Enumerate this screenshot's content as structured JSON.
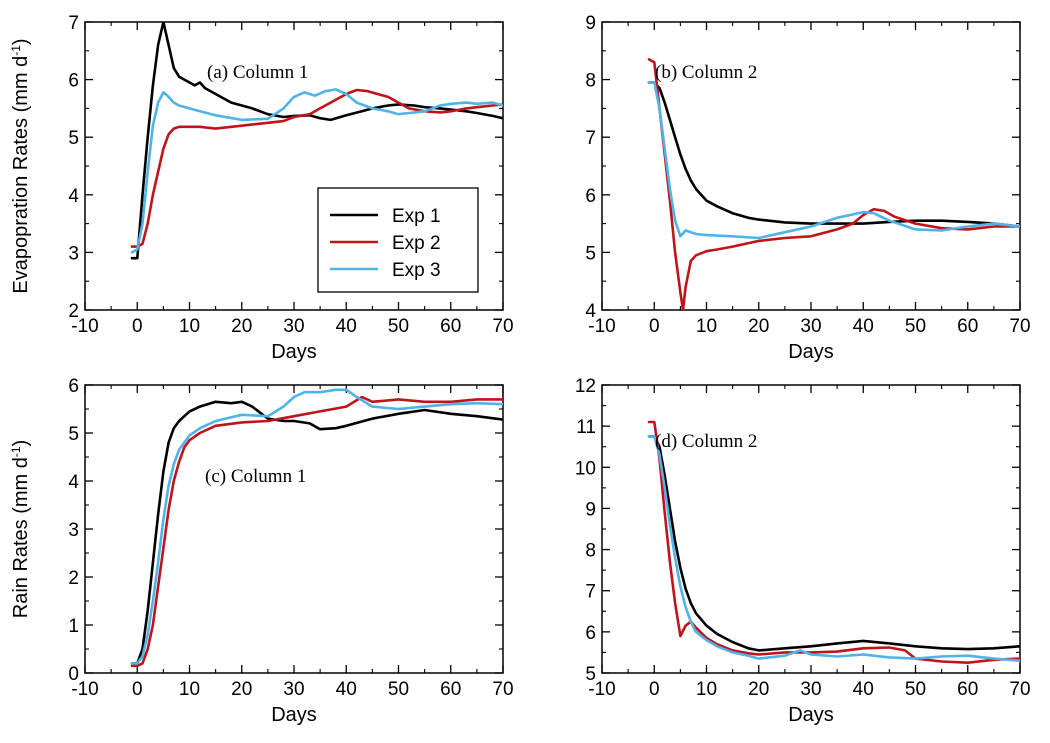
{
  "colors": {
    "exp1": "#000000",
    "exp2": "#c0141c",
    "exp3": "#4fb3e8"
  },
  "legend": {
    "entries": [
      "Exp 1",
      "Exp 2",
      "Exp 3"
    ]
  },
  "chart_data": [
    {
      "type": "line",
      "panel_label": "(a) Column 1",
      "xlabel": "Days",
      "ylabel": "Evapopration Rates (mm d",
      "ylabel_sup": "-1",
      "ylabel_close": ")",
      "xlim": [
        -10,
        70
      ],
      "ylim": [
        2,
        7
      ],
      "xticks": [
        -10,
        0,
        10,
        20,
        30,
        40,
        50,
        60,
        70
      ],
      "yticks": [
        2,
        3,
        4,
        5,
        6,
        7
      ],
      "legend_position": "lower-right",
      "series": [
        {
          "name": "Exp 1",
          "x": [
            -1,
            0,
            1,
            2,
            3,
            4,
            5,
            6,
            7,
            8,
            9,
            10,
            11,
            12,
            13,
            15,
            18,
            20,
            22,
            25,
            28,
            30,
            33,
            35,
            37,
            40,
            43,
            45,
            48,
            50,
            53,
            55,
            58,
            60,
            63,
            65,
            68,
            70
          ],
          "y": [
            2.9,
            2.9,
            4.0,
            5.0,
            5.9,
            6.6,
            7.0,
            6.6,
            6.2,
            6.05,
            6.0,
            5.95,
            5.9,
            5.95,
            5.85,
            5.75,
            5.6,
            5.55,
            5.5,
            5.4,
            5.35,
            5.37,
            5.38,
            5.33,
            5.3,
            5.38,
            5.45,
            5.5,
            5.55,
            5.57,
            5.55,
            5.52,
            5.5,
            5.48,
            5.45,
            5.42,
            5.37,
            5.33
          ]
        },
        {
          "name": "Exp 2",
          "x": [
            -1,
            0,
            1,
            2,
            3,
            4,
            5,
            6,
            7,
            8,
            9,
            10,
            12,
            15,
            20,
            25,
            28,
            30,
            33,
            35,
            37,
            40,
            42,
            44,
            46,
            48,
            50,
            52,
            55,
            58,
            60,
            63,
            65,
            68,
            70
          ],
          "y": [
            3.1,
            3.1,
            3.15,
            3.5,
            4.0,
            4.4,
            4.8,
            5.05,
            5.15,
            5.18,
            5.18,
            5.18,
            5.18,
            5.15,
            5.2,
            5.25,
            5.28,
            5.35,
            5.4,
            5.5,
            5.6,
            5.75,
            5.82,
            5.8,
            5.75,
            5.7,
            5.6,
            5.5,
            5.45,
            5.43,
            5.45,
            5.5,
            5.52,
            5.55,
            5.57
          ]
        },
        {
          "name": "Exp 3",
          "x": [
            -1,
            0,
            1,
            2,
            3,
            4,
            5,
            6,
            7,
            8,
            10,
            12,
            15,
            20,
            25,
            28,
            30,
            32,
            34,
            36,
            38,
            40,
            42,
            45,
            48,
            50,
            52,
            55,
            58,
            60,
            63,
            65,
            68,
            70
          ],
          "y": [
            3.0,
            3.05,
            3.5,
            4.4,
            5.2,
            5.6,
            5.78,
            5.7,
            5.6,
            5.55,
            5.5,
            5.45,
            5.38,
            5.3,
            5.32,
            5.5,
            5.7,
            5.78,
            5.72,
            5.8,
            5.83,
            5.75,
            5.6,
            5.5,
            5.45,
            5.4,
            5.42,
            5.45,
            5.55,
            5.58,
            5.6,
            5.58,
            5.6,
            5.55
          ]
        }
      ]
    },
    {
      "type": "line",
      "panel_label": "(b) Column 2",
      "xlabel": "Days",
      "ylabel": "",
      "ylabel_sup": "",
      "ylabel_close": "",
      "xlim": [
        -10,
        70
      ],
      "ylim": [
        4,
        9
      ],
      "xticks": [
        -10,
        0,
        10,
        20,
        30,
        40,
        50,
        60,
        70
      ],
      "yticks": [
        4,
        5,
        6,
        7,
        8,
        9
      ],
      "series": [
        {
          "name": "Exp 1",
          "x": [
            -1,
            0,
            1,
            2,
            3,
            4,
            5,
            6,
            7,
            8,
            10,
            12,
            15,
            18,
            20,
            25,
            30,
            35,
            40,
            45,
            50,
            55,
            60,
            65,
            70
          ],
          "y": [
            7.95,
            7.95,
            7.85,
            7.6,
            7.3,
            7.0,
            6.7,
            6.45,
            6.25,
            6.1,
            5.9,
            5.8,
            5.68,
            5.6,
            5.57,
            5.52,
            5.5,
            5.5,
            5.5,
            5.53,
            5.55,
            5.55,
            5.53,
            5.5,
            5.45
          ]
        },
        {
          "name": "Exp 2",
          "x": [
            -1,
            0,
            1,
            2,
            3,
            4,
            5,
            5.5,
            6,
            7,
            8,
            10,
            12,
            15,
            20,
            25,
            30,
            35,
            38,
            40,
            42,
            44,
            46,
            50,
            55,
            60,
            65,
            70
          ],
          "y": [
            8.35,
            8.3,
            7.5,
            6.7,
            5.9,
            5.0,
            4.3,
            4.0,
            4.4,
            4.85,
            4.95,
            5.02,
            5.05,
            5.1,
            5.2,
            5.25,
            5.28,
            5.4,
            5.5,
            5.65,
            5.75,
            5.72,
            5.62,
            5.5,
            5.42,
            5.4,
            5.45,
            5.45
          ]
        },
        {
          "name": "Exp 3",
          "x": [
            -1,
            0,
            1,
            2,
            3,
            4,
            5,
            6,
            7,
            8,
            10,
            15,
            20,
            25,
            30,
            35,
            40,
            42,
            45,
            50,
            55,
            60,
            65,
            70
          ],
          "y": [
            7.95,
            7.95,
            7.5,
            6.8,
            6.1,
            5.55,
            5.28,
            5.38,
            5.35,
            5.32,
            5.3,
            5.28,
            5.25,
            5.35,
            5.45,
            5.6,
            5.7,
            5.68,
            5.55,
            5.4,
            5.38,
            5.45,
            5.5,
            5.45
          ]
        }
      ]
    },
    {
      "type": "line",
      "panel_label": "(c)  Column 1",
      "xlabel": "Days",
      "ylabel": "Rain Rates (mm d",
      "ylabel_sup": "-1",
      "ylabel_close": ")",
      "xlim": [
        -10,
        70
      ],
      "ylim": [
        0,
        6
      ],
      "xticks": [
        -10,
        0,
        10,
        20,
        30,
        40,
        50,
        60,
        70
      ],
      "yticks": [
        0,
        1,
        2,
        3,
        4,
        5,
        6
      ],
      "series": [
        {
          "name": "Exp 1",
          "x": [
            -1,
            0,
            1,
            2,
            3,
            4,
            5,
            6,
            7,
            8,
            10,
            12,
            15,
            18,
            20,
            22,
            25,
            28,
            30,
            33,
            35,
            38,
            40,
            45,
            50,
            55,
            60,
            65,
            70
          ],
          "y": [
            0.2,
            0.2,
            0.5,
            1.3,
            2.3,
            3.3,
            4.2,
            4.8,
            5.1,
            5.25,
            5.45,
            5.55,
            5.65,
            5.62,
            5.65,
            5.55,
            5.3,
            5.25,
            5.25,
            5.2,
            5.08,
            5.1,
            5.15,
            5.3,
            5.4,
            5.48,
            5.4,
            5.35,
            5.28
          ]
        },
        {
          "name": "Exp 2",
          "x": [
            -1,
            0,
            1,
            2,
            3,
            4,
            5,
            6,
            7,
            8,
            9,
            10,
            12,
            15,
            20,
            25,
            30,
            35,
            40,
            43,
            45,
            50,
            55,
            60,
            65,
            70
          ],
          "y": [
            0.15,
            0.15,
            0.2,
            0.5,
            1.0,
            1.8,
            2.6,
            3.4,
            4.0,
            4.4,
            4.7,
            4.85,
            5.0,
            5.15,
            5.22,
            5.25,
            5.35,
            5.45,
            5.55,
            5.75,
            5.65,
            5.7,
            5.65,
            5.65,
            5.7,
            5.7
          ]
        },
        {
          "name": "Exp 3",
          "x": [
            -1,
            0,
            1,
            2,
            3,
            4,
            5,
            6,
            7,
            8,
            10,
            12,
            15,
            20,
            25,
            28,
            30,
            32,
            35,
            38,
            40,
            42,
            45,
            50,
            55,
            60,
            65,
            70
          ],
          "y": [
            0.2,
            0.2,
            0.35,
            0.8,
            1.5,
            2.3,
            3.2,
            3.9,
            4.35,
            4.65,
            4.95,
            5.1,
            5.25,
            5.38,
            5.35,
            5.55,
            5.75,
            5.85,
            5.85,
            5.9,
            5.9,
            5.75,
            5.55,
            5.5,
            5.55,
            5.6,
            5.62,
            5.6
          ]
        }
      ]
    },
    {
      "type": "line",
      "panel_label": "(d) Column 2",
      "xlabel": "Days",
      "ylabel": "",
      "ylabel_sup": "",
      "ylabel_close": "",
      "xlim": [
        -10,
        70
      ],
      "ylim": [
        5,
        12
      ],
      "xticks": [
        -10,
        0,
        10,
        20,
        30,
        40,
        50,
        60,
        70
      ],
      "yticks": [
        5,
        6,
        7,
        8,
        9,
        10,
        11,
        12
      ],
      "series": [
        {
          "name": "Exp 1",
          "x": [
            -1,
            0,
            1,
            2,
            3,
            4,
            5,
            6,
            7,
            8,
            10,
            12,
            15,
            18,
            20,
            25,
            30,
            35,
            40,
            45,
            50,
            55,
            60,
            65,
            70
          ],
          "y": [
            10.75,
            10.75,
            10.5,
            9.8,
            9.0,
            8.2,
            7.55,
            7.05,
            6.7,
            6.45,
            6.15,
            5.95,
            5.75,
            5.6,
            5.55,
            5.6,
            5.65,
            5.72,
            5.78,
            5.72,
            5.65,
            5.6,
            5.58,
            5.6,
            5.65
          ]
        },
        {
          "name": "Exp 2",
          "x": [
            -1,
            0,
            1,
            2,
            3,
            4,
            5,
            6,
            7,
            8,
            10,
            12,
            15,
            18,
            20,
            25,
            30,
            35,
            40,
            45,
            48,
            50,
            55,
            60,
            65,
            70
          ],
          "y": [
            11.1,
            11.1,
            10.2,
            8.9,
            7.7,
            6.7,
            5.9,
            6.15,
            6.25,
            6.1,
            5.85,
            5.7,
            5.55,
            5.48,
            5.45,
            5.5,
            5.5,
            5.52,
            5.6,
            5.62,
            5.55,
            5.35,
            5.28,
            5.25,
            5.32,
            5.35
          ]
        },
        {
          "name": "Exp 3",
          "x": [
            -1,
            0,
            1,
            2,
            3,
            4,
            5,
            6,
            7,
            8,
            10,
            12,
            15,
            18,
            20,
            25,
            28,
            30,
            35,
            40,
            45,
            50,
            55,
            60,
            65,
            70
          ],
          "y": [
            10.75,
            10.75,
            10.3,
            9.5,
            8.6,
            7.8,
            7.1,
            6.6,
            6.25,
            6.0,
            5.8,
            5.65,
            5.5,
            5.42,
            5.35,
            5.42,
            5.55,
            5.45,
            5.4,
            5.45,
            5.38,
            5.35,
            5.4,
            5.42,
            5.35,
            5.3
          ]
        }
      ]
    }
  ]
}
